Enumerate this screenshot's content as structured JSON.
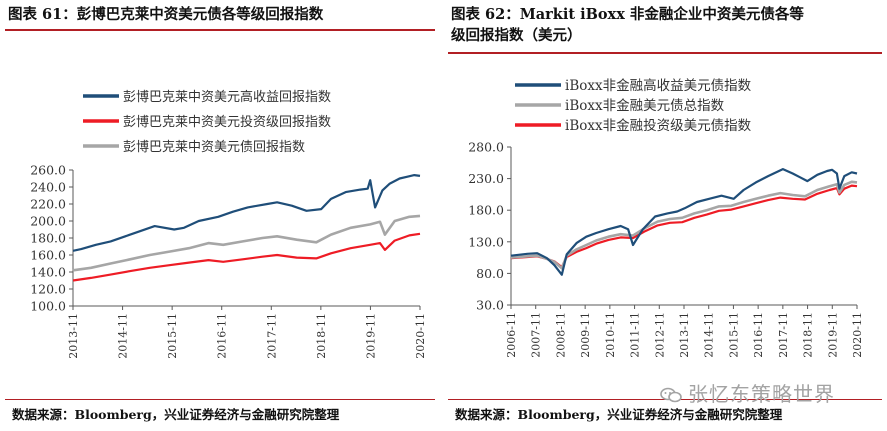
{
  "colors": {
    "navy": "#1f4e79",
    "red": "#ee1c25",
    "gray": "#a6a6a6",
    "rule": "#b21f24",
    "axis": "#595959"
  },
  "left": {
    "title": "图表 61：彭博巴克莱中资美元债各等级回报指数",
    "source": "数据来源：Bloomberg，兴业证券经济与金融研究院整理"
  },
  "right": {
    "title_line1": "图表 62：Markit iBoxx 非金融企业中资美元债各等",
    "title_line2": "级回报指数（美元）",
    "source": "数据来源：Bloomberg，兴业证券经济与金融研究院整理"
  },
  "watermark": {
    "text": "张忆东策略世界",
    "icon": "wechat-icon"
  },
  "chart_data": [
    {
      "type": "line",
      "legend_position": "top-left",
      "grid": false,
      "ylim": [
        100,
        260
      ],
      "yticks": [
        "260.0",
        "240.0",
        "220.0",
        "200.0",
        "180.0",
        "160.0",
        "140.0",
        "120.0",
        "100.0"
      ],
      "xlim": [
        2013.833,
        2020.917
      ],
      "xticks": [
        "2013-11",
        "2014-11",
        "2015-11",
        "2016-11",
        "2017-11",
        "2018-11",
        "2019-11",
        "2020-11"
      ],
      "series": [
        {
          "name": "彭博巴克莱中资美元高收益回报指数",
          "color": "#1f4e79",
          "x": [
            2013.833,
            2014.0,
            2014.3,
            2014.6,
            2014.9,
            2015.2,
            2015.5,
            2015.9,
            2016.1,
            2016.4,
            2016.8,
            2017.1,
            2017.4,
            2017.8,
            2018.0,
            2018.3,
            2018.6,
            2018.9,
            2019.1,
            2019.4,
            2019.7,
            2019.85,
            2019.9,
            2020.0,
            2020.15,
            2020.3,
            2020.5,
            2020.65,
            2020.8,
            2020.917
          ],
          "y": [
            165,
            167,
            172,
            176,
            182,
            188,
            194,
            190,
            192,
            200,
            205,
            211,
            216,
            220,
            222,
            218,
            212,
            214,
            226,
            234,
            237,
            238,
            248,
            216,
            236,
            244,
            250,
            252,
            254,
            253
          ]
        },
        {
          "name": "彭博巴克莱中资美元投资级回报指数",
          "color": "#ee1c25",
          "x": [
            2013.833,
            2014.2,
            2014.6,
            2015.0,
            2015.4,
            2015.8,
            2016.2,
            2016.6,
            2016.9,
            2017.3,
            2017.7,
            2018.0,
            2018.4,
            2018.8,
            2019.1,
            2019.5,
            2019.9,
            2020.1,
            2020.2,
            2020.4,
            2020.7,
            2020.917
          ],
          "y": [
            130,
            133,
            137,
            141,
            145,
            148,
            151,
            154,
            152,
            155,
            158,
            160,
            157,
            156,
            162,
            168,
            172,
            174,
            166,
            177,
            183,
            185
          ]
        },
        {
          "name": "彭博巴克莱中资美元债回报指数",
          "color": "#a6a6a6",
          "x": [
            2013.833,
            2014.2,
            2014.6,
            2015.0,
            2015.4,
            2015.8,
            2016.2,
            2016.6,
            2016.9,
            2017.3,
            2017.7,
            2018.0,
            2018.4,
            2018.8,
            2019.1,
            2019.5,
            2019.9,
            2020.1,
            2020.2,
            2020.4,
            2020.7,
            2020.917
          ],
          "y": [
            142,
            145,
            150,
            155,
            160,
            164,
            168,
            174,
            172,
            176,
            180,
            182,
            178,
            175,
            184,
            192,
            196,
            199,
            184,
            200,
            205,
            206
          ]
        }
      ]
    },
    {
      "type": "line",
      "legend_position": "top-left",
      "grid": false,
      "ylim": [
        30,
        280
      ],
      "yticks": [
        "280.0",
        "230.0",
        "180.0",
        "130.0",
        "80.0",
        "30.0"
      ],
      "xlim": [
        2006.833,
        2020.917
      ],
      "xticks": [
        "2006-11",
        "2007-11",
        "2008-11",
        "2009-11",
        "2010-11",
        "2011-11",
        "2012-11",
        "2013-11",
        "2014-11",
        "2015-11",
        "2016-11",
        "2017-11",
        "2018-11",
        "2019-11",
        "2020-11"
      ],
      "series": [
        {
          "name": "iBoxx非金融高收益美元债指数",
          "color": "#1f4e79",
          "x": [
            2006.833,
            2007.5,
            2007.9,
            2008.3,
            2008.6,
            2008.9,
            2009.1,
            2009.5,
            2009.9,
            2010.3,
            2010.8,
            2011.3,
            2011.6,
            2011.8,
            2012.2,
            2012.7,
            2013.2,
            2013.6,
            2013.9,
            2014.4,
            2014.9,
            2015.4,
            2015.9,
            2016.3,
            2016.8,
            2017.3,
            2017.9,
            2018.3,
            2018.6,
            2018.9,
            2019.3,
            2019.7,
            2019.9,
            2020.1,
            2020.2,
            2020.4,
            2020.7,
            2020.917
          ],
          "y": [
            108,
            111,
            112,
            104,
            93,
            78,
            110,
            128,
            138,
            144,
            150,
            155,
            150,
            125,
            150,
            170,
            175,
            178,
            183,
            193,
            198,
            203,
            198,
            212,
            224,
            234,
            245,
            238,
            232,
            226,
            236,
            242,
            244,
            238,
            214,
            234,
            240,
            238
          ]
        },
        {
          "name": "iBoxx非金融美元债总指数",
          "color": "#a6a6a6",
          "x": [
            2006.833,
            2007.5,
            2007.9,
            2008.3,
            2008.6,
            2008.9,
            2009.1,
            2009.5,
            2009.9,
            2010.3,
            2010.8,
            2011.3,
            2011.8,
            2012.3,
            2012.8,
            2013.3,
            2013.8,
            2014.3,
            2014.8,
            2015.3,
            2015.8,
            2016.3,
            2016.8,
            2017.3,
            2017.8,
            2018.3,
            2018.8,
            2019.3,
            2019.8,
            2020.1,
            2020.2,
            2020.4,
            2020.7,
            2020.917
          ],
          "y": [
            105,
            107,
            108,
            103,
            98,
            88,
            108,
            118,
            125,
            132,
            138,
            142,
            140,
            152,
            162,
            166,
            168,
            175,
            180,
            186,
            187,
            193,
            198,
            203,
            207,
            204,
            202,
            212,
            218,
            221,
            208,
            220,
            225,
            224
          ]
        },
        {
          "name": "iBoxx非金融投资级美元债指数",
          "color": "#ee1c25",
          "x": [
            2006.833,
            2007.5,
            2007.9,
            2008.3,
            2008.6,
            2008.9,
            2009.1,
            2009.5,
            2009.9,
            2010.3,
            2010.8,
            2011.3,
            2011.8,
            2012.3,
            2012.8,
            2013.3,
            2013.8,
            2014.3,
            2014.8,
            2015.3,
            2015.8,
            2016.3,
            2016.8,
            2017.3,
            2017.8,
            2018.3,
            2018.8,
            2019.3,
            2019.8,
            2020.1,
            2020.2,
            2020.4,
            2020.7,
            2020.917
          ],
          "y": [
            104,
            106,
            107,
            103,
            99,
            90,
            106,
            114,
            120,
            127,
            133,
            137,
            136,
            147,
            156,
            160,
            161,
            168,
            173,
            179,
            181,
            186,
            191,
            196,
            200,
            198,
            197,
            206,
            212,
            215,
            205,
            214,
            219,
            218
          ]
        }
      ]
    }
  ]
}
